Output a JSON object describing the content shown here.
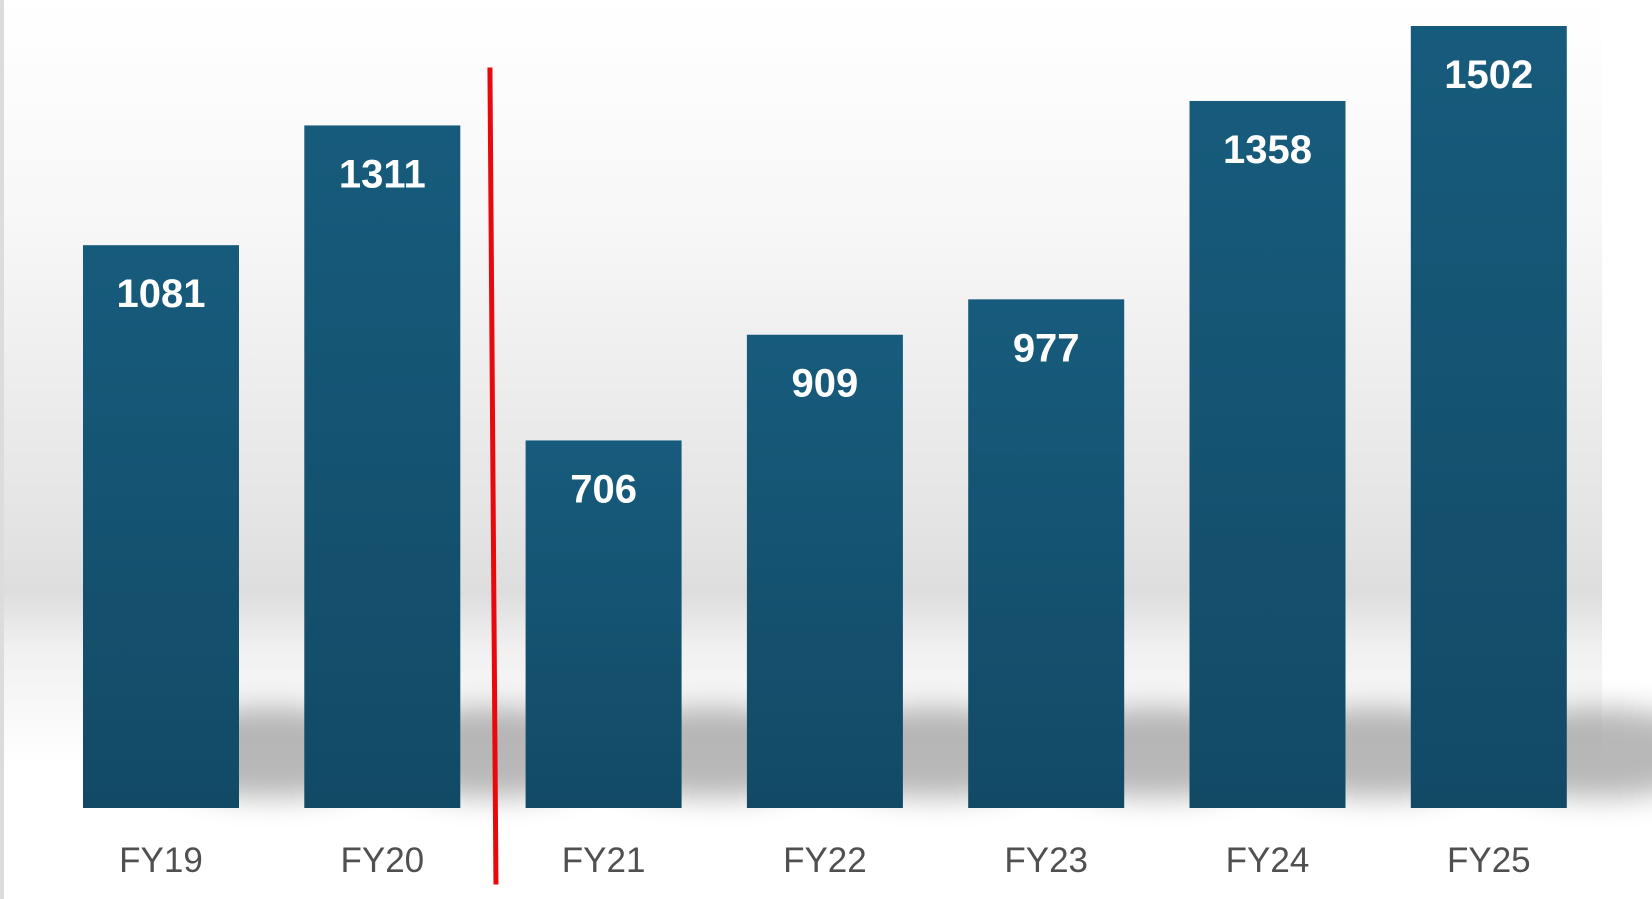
{
  "chart_data": {
    "type": "bar",
    "title": "",
    "xlabel": "",
    "ylabel": "",
    "categories": [
      "FY19",
      "FY20",
      "FY21",
      "FY22",
      "FY23",
      "FY24",
      "FY25"
    ],
    "values": [
      1081,
      1311,
      706,
      909,
      977,
      1358,
      1502
    ],
    "ylim": [
      0,
      1550
    ],
    "grid": false,
    "legend": "none",
    "data_labels": "inside-top",
    "divider": {
      "after_category": "FY20",
      "color": "#e8090d"
    },
    "colors": {
      "bar": "#175b7c",
      "bar_dark": "#124a66",
      "value_label": "#ffffff",
      "tick_label": "#505050",
      "background": "#ffffff"
    }
  }
}
